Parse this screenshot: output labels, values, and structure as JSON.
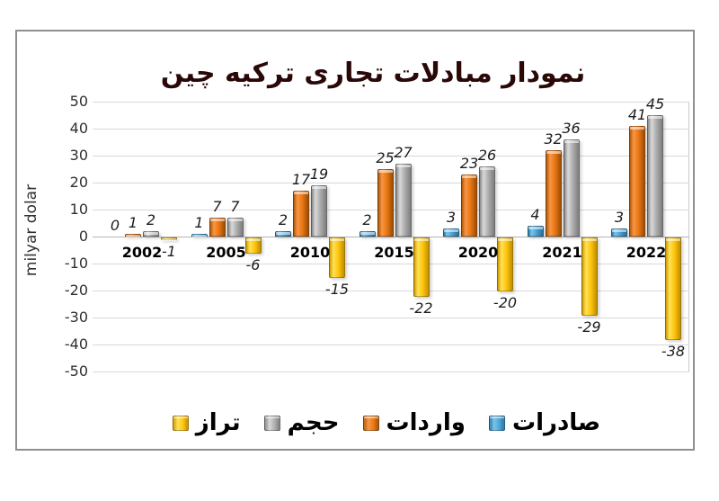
{
  "window": {
    "background": "#ffffff",
    "frame_border": "#8f8f8f"
  },
  "chart_data": {
    "type": "bar",
    "title": "نمودار مبادلات تجاری ترکیه چین",
    "title_color": "#2a0808",
    "ylabel": "milyar dolar",
    "ylim": [
      -50,
      50
    ],
    "yticks": [
      50,
      40,
      30,
      20,
      10,
      0,
      -10,
      -20,
      -30,
      -40,
      -50
    ],
    "grid": true,
    "legend_position": "bottom",
    "categories": [
      "2002",
      "2005",
      "2010",
      "2015",
      "2020",
      "2021",
      "2022"
    ],
    "series": [
      {
        "key": "exports",
        "name": "صادرات",
        "color": "#4aa3d4",
        "values": [
          0,
          1,
          2,
          2,
          3,
          4,
          3
        ]
      },
      {
        "key": "imports",
        "name": "واردات",
        "color": "#e97613",
        "values": [
          1,
          7,
          17,
          25,
          23,
          32,
          41
        ]
      },
      {
        "key": "volume",
        "name": "حجم",
        "color": "#ababab",
        "values": [
          2,
          7,
          19,
          27,
          26,
          36,
          45
        ]
      },
      {
        "key": "balance",
        "name": "تراز",
        "color": "#fec30b",
        "values": [
          -1,
          -6,
          -15,
          -22,
          -20,
          -29,
          -38
        ]
      }
    ],
    "legend_order": [
      "balance",
      "volume",
      "imports",
      "exports"
    ]
  }
}
